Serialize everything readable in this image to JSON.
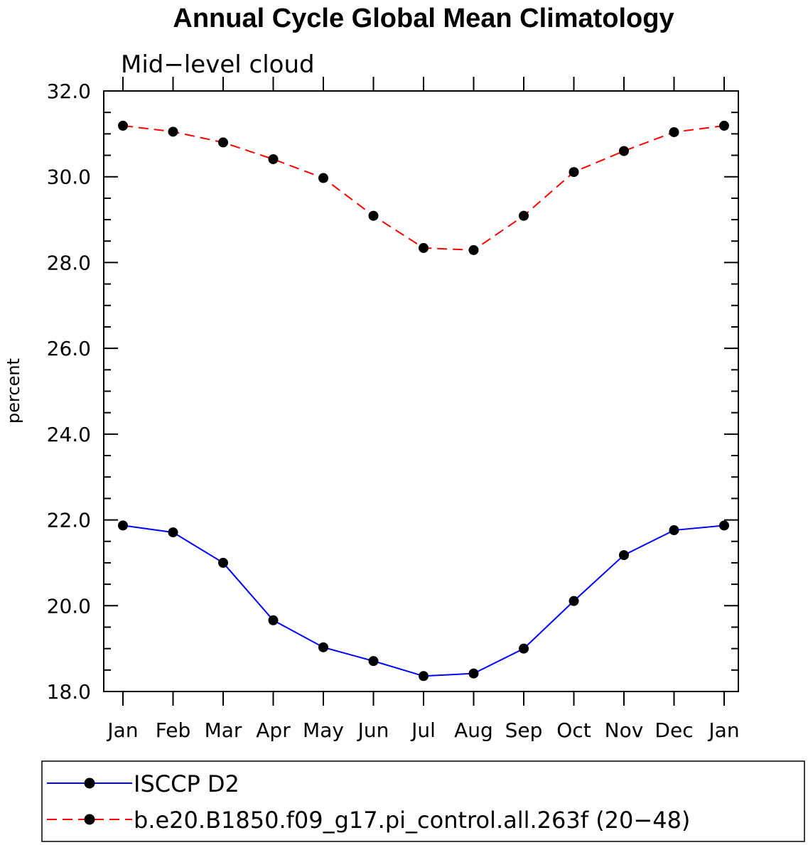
{
  "chart_data": {
    "type": "line",
    "title": "Annual Cycle Global Mean Climatology",
    "subtitle": "Mid−level cloud",
    "ylabel": "percent",
    "xlabel": "",
    "categories": [
      "Jan",
      "Feb",
      "Mar",
      "Apr",
      "May",
      "Jun",
      "Jul",
      "Aug",
      "Sep",
      "Oct",
      "Nov",
      "Dec",
      "Jan"
    ],
    "ylim": [
      18.0,
      32.0
    ],
    "yticks": [
      "18.0",
      "20.0",
      "22.0",
      "24.0",
      "26.0",
      "28.0",
      "30.0",
      "32.0"
    ],
    "grid": false,
    "legend_position": "bottom",
    "series": [
      {
        "name": "ISCCP D2",
        "color": "#0000ff",
        "dash": "solid",
        "marker": "circle",
        "values": [
          21.87,
          21.71,
          21.0,
          19.66,
          19.03,
          18.71,
          18.36,
          18.42,
          19.0,
          20.11,
          21.18,
          21.76,
          21.87
        ]
      },
      {
        "name": "b.e20.B1850.f09_g17.pi_control.all.263f (20−48)",
        "color": "#ff0000",
        "dash": "dashed",
        "marker": "circle",
        "values": [
          31.19,
          31.05,
          30.8,
          30.41,
          29.97,
          29.09,
          28.34,
          28.29,
          29.09,
          30.11,
          30.6,
          31.04,
          31.19
        ]
      }
    ]
  }
}
